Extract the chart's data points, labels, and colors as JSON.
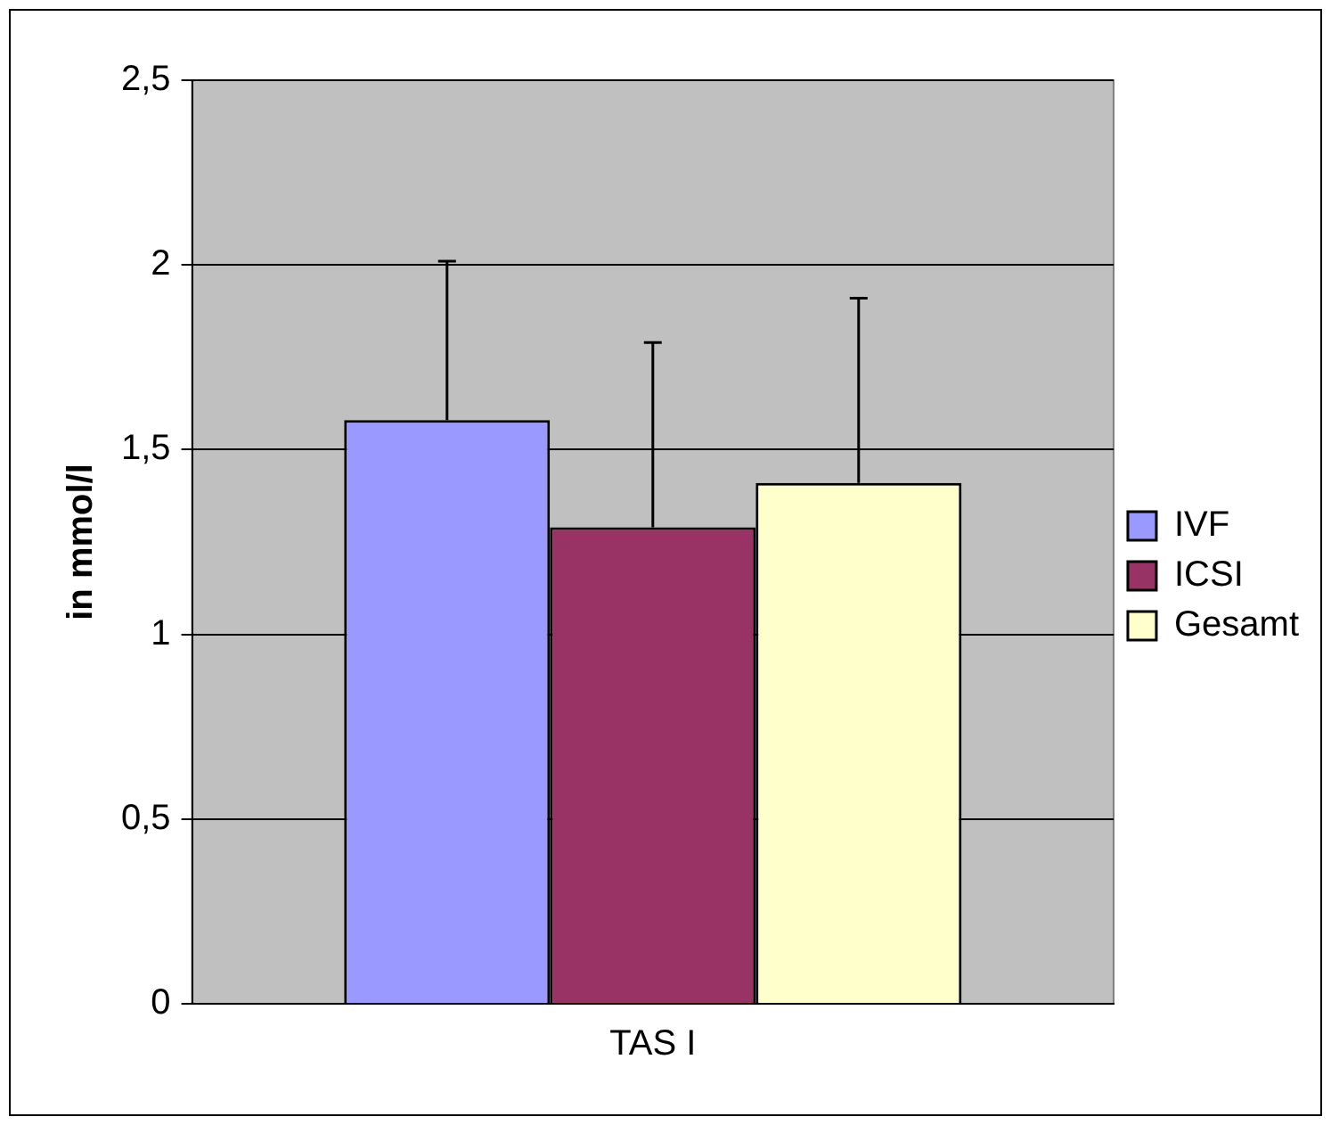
{
  "chart_data": {
    "type": "bar",
    "ylabel": "in mmol/l",
    "categories": [
      "TAS I"
    ],
    "series": [
      {
        "name": "IVF",
        "color": "#9999ff",
        "values": [
          1.58
        ],
        "errors": [
          [
            1.58,
            2.01
          ]
        ]
      },
      {
        "name": "ICSI",
        "color": "#993366",
        "values": [
          1.29
        ],
        "errors": [
          [
            1.29,
            1.79
          ]
        ]
      },
      {
        "name": "Gesamt",
        "color": "#ffffcc",
        "values": [
          1.41
        ],
        "errors": [
          [
            1.41,
            1.91
          ]
        ]
      }
    ],
    "ylim": [
      0,
      2.5
    ],
    "yticks": [
      0,
      {
        "value": 0.5,
        "label": "0,5"
      },
      1,
      {
        "value": 1.5,
        "label": "1,5"
      },
      2,
      {
        "value": 2.5,
        "label": "2,5"
      }
    ],
    "grid": "y",
    "legend": "right"
  }
}
